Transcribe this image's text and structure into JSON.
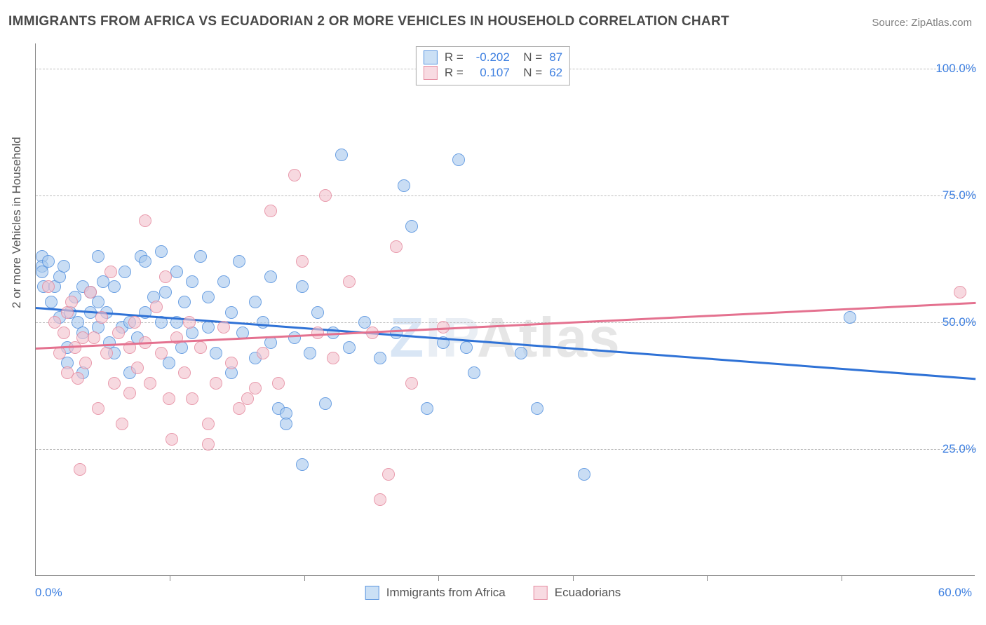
{
  "title": "IMMIGRANTS FROM AFRICA VS ECUADORIAN 2 OR MORE VEHICLES IN HOUSEHOLD CORRELATION CHART",
  "source_prefix": "Source: ",
  "source_name": "ZipAtlas.com",
  "watermark_a": "ZIP",
  "watermark_b": "Atlas",
  "chart": {
    "type": "scatter",
    "ylabel": "2 or more Vehicles in Household",
    "xlim": [
      0,
      60
    ],
    "ylim": [
      0,
      105
    ],
    "y_ticks": [
      25,
      50,
      75,
      100
    ],
    "y_tick_labels": [
      "25.0%",
      "50.0%",
      "75.0%",
      "100.0%"
    ],
    "x_min_label": "0.0%",
    "x_max_label": "60.0%",
    "x_tick_step": 10,
    "x_tick_count": 6,
    "background": "#ffffff",
    "grid_color": "#bdbdbd",
    "axis_color": "#888888",
    "label_color": "#555555",
    "tick_label_color": "#3d7fe0",
    "marker_radius": 9,
    "marker_border_width": 1.5,
    "marker_fill_opacity": 0.35,
    "series": [
      {
        "key": "africa",
        "label": "Immigrants from Africa",
        "stroke": "#5a95df",
        "fill": "#a9cbee",
        "R": "-0.202",
        "N": "87",
        "trend": {
          "x0": 0,
          "y0": 53,
          "x1": 60,
          "y1": 39,
          "color": "#2f72d6",
          "width": 2.5
        },
        "points": [
          [
            0.4,
            63
          ],
          [
            0.4,
            61
          ],
          [
            0.4,
            60
          ],
          [
            0.5,
            57
          ],
          [
            0.8,
            62
          ],
          [
            1.0,
            54
          ],
          [
            1.2,
            57
          ],
          [
            1.5,
            59
          ],
          [
            1.5,
            51
          ],
          [
            1.8,
            61
          ],
          [
            2.0,
            45
          ],
          [
            2.0,
            42
          ],
          [
            2.2,
            52
          ],
          [
            2.5,
            55
          ],
          [
            2.7,
            50
          ],
          [
            3.0,
            57
          ],
          [
            3.0,
            48
          ],
          [
            3.0,
            40
          ],
          [
            3.5,
            56
          ],
          [
            3.5,
            52
          ],
          [
            4.0,
            63
          ],
          [
            4.0,
            54
          ],
          [
            4.0,
            49
          ],
          [
            4.3,
            58
          ],
          [
            4.5,
            52
          ],
          [
            4.7,
            46
          ],
          [
            5.0,
            57
          ],
          [
            5.0,
            44
          ],
          [
            5.5,
            49
          ],
          [
            5.7,
            60
          ],
          [
            6.0,
            50
          ],
          [
            6.0,
            40
          ],
          [
            6.5,
            47
          ],
          [
            6.7,
            63
          ],
          [
            7.0,
            52
          ],
          [
            7.0,
            62
          ],
          [
            7.5,
            55
          ],
          [
            8.0,
            64
          ],
          [
            8.0,
            50
          ],
          [
            8.3,
            56
          ],
          [
            8.5,
            42
          ],
          [
            9.0,
            60
          ],
          [
            9.0,
            50
          ],
          [
            9.3,
            45
          ],
          [
            9.5,
            54
          ],
          [
            10.0,
            58
          ],
          [
            10.0,
            48
          ],
          [
            10.5,
            63
          ],
          [
            11.0,
            55
          ],
          [
            11.0,
            49
          ],
          [
            11.5,
            44
          ],
          [
            12.0,
            58
          ],
          [
            12.5,
            52
          ],
          [
            12.5,
            40
          ],
          [
            13.0,
            62
          ],
          [
            13.2,
            48
          ],
          [
            14.0,
            54
          ],
          [
            14.0,
            43
          ],
          [
            14.5,
            50
          ],
          [
            15.0,
            59
          ],
          [
            15.0,
            46
          ],
          [
            15.5,
            33
          ],
          [
            16.0,
            32
          ],
          [
            16.0,
            30
          ],
          [
            16.5,
            47
          ],
          [
            17.0,
            57
          ],
          [
            17.0,
            22
          ],
          [
            17.5,
            44
          ],
          [
            18.0,
            52
          ],
          [
            18.5,
            34
          ],
          [
            19.0,
            48
          ],
          [
            19.5,
            83
          ],
          [
            20.0,
            45
          ],
          [
            21.0,
            50
          ],
          [
            22.0,
            43
          ],
          [
            23.0,
            48
          ],
          [
            23.5,
            77
          ],
          [
            24.0,
            69
          ],
          [
            25.0,
            33
          ],
          [
            26.0,
            46
          ],
          [
            27.0,
            82
          ],
          [
            27.5,
            45
          ],
          [
            28.0,
            40
          ],
          [
            31.0,
            44
          ],
          [
            32.0,
            33
          ],
          [
            35.0,
            20
          ],
          [
            52.0,
            51
          ]
        ]
      },
      {
        "key": "ecuador",
        "label": "Ecuadorians",
        "stroke": "#e68fa3",
        "fill": "#f4c3ce",
        "R": "0.107",
        "N": "62",
        "trend": {
          "x0": 0,
          "y0": 45,
          "x1": 60,
          "y1": 54,
          "color": "#e4718f",
          "width": 2.5
        },
        "points": [
          [
            0.8,
            57
          ],
          [
            1.2,
            50
          ],
          [
            1.5,
            44
          ],
          [
            1.8,
            48
          ],
          [
            2.0,
            52
          ],
          [
            2.0,
            40
          ],
          [
            2.3,
            54
          ],
          [
            2.5,
            45
          ],
          [
            2.7,
            39
          ],
          [
            2.8,
            21
          ],
          [
            3.0,
            47
          ],
          [
            3.2,
            42
          ],
          [
            3.5,
            56
          ],
          [
            3.7,
            47
          ],
          [
            4.0,
            33
          ],
          [
            4.2,
            51
          ],
          [
            4.5,
            44
          ],
          [
            4.8,
            60
          ],
          [
            5.0,
            38
          ],
          [
            5.3,
            48
          ],
          [
            5.5,
            30
          ],
          [
            6.0,
            45
          ],
          [
            6.0,
            36
          ],
          [
            6.3,
            50
          ],
          [
            6.5,
            41
          ],
          [
            7.0,
            70
          ],
          [
            7.0,
            46
          ],
          [
            7.3,
            38
          ],
          [
            7.7,
            53
          ],
          [
            8.0,
            44
          ],
          [
            8.3,
            59
          ],
          [
            8.5,
            35
          ],
          [
            8.7,
            27
          ],
          [
            9.0,
            47
          ],
          [
            9.5,
            40
          ],
          [
            9.8,
            50
          ],
          [
            10.0,
            35
          ],
          [
            10.5,
            45
          ],
          [
            11.0,
            30
          ],
          [
            11.0,
            26
          ],
          [
            11.5,
            38
          ],
          [
            12.0,
            49
          ],
          [
            12.5,
            42
          ],
          [
            13.0,
            33
          ],
          [
            13.5,
            35
          ],
          [
            14.0,
            37
          ],
          [
            14.5,
            44
          ],
          [
            15.0,
            72
          ],
          [
            15.5,
            38
          ],
          [
            16.5,
            79
          ],
          [
            17.0,
            62
          ],
          [
            18.0,
            48
          ],
          [
            18.5,
            75
          ],
          [
            19.0,
            43
          ],
          [
            20.0,
            58
          ],
          [
            21.5,
            48
          ],
          [
            22.0,
            15
          ],
          [
            22.5,
            20
          ],
          [
            23.0,
            65
          ],
          [
            24.0,
            38
          ],
          [
            26.0,
            49
          ],
          [
            59.0,
            56
          ]
        ]
      }
    ]
  }
}
